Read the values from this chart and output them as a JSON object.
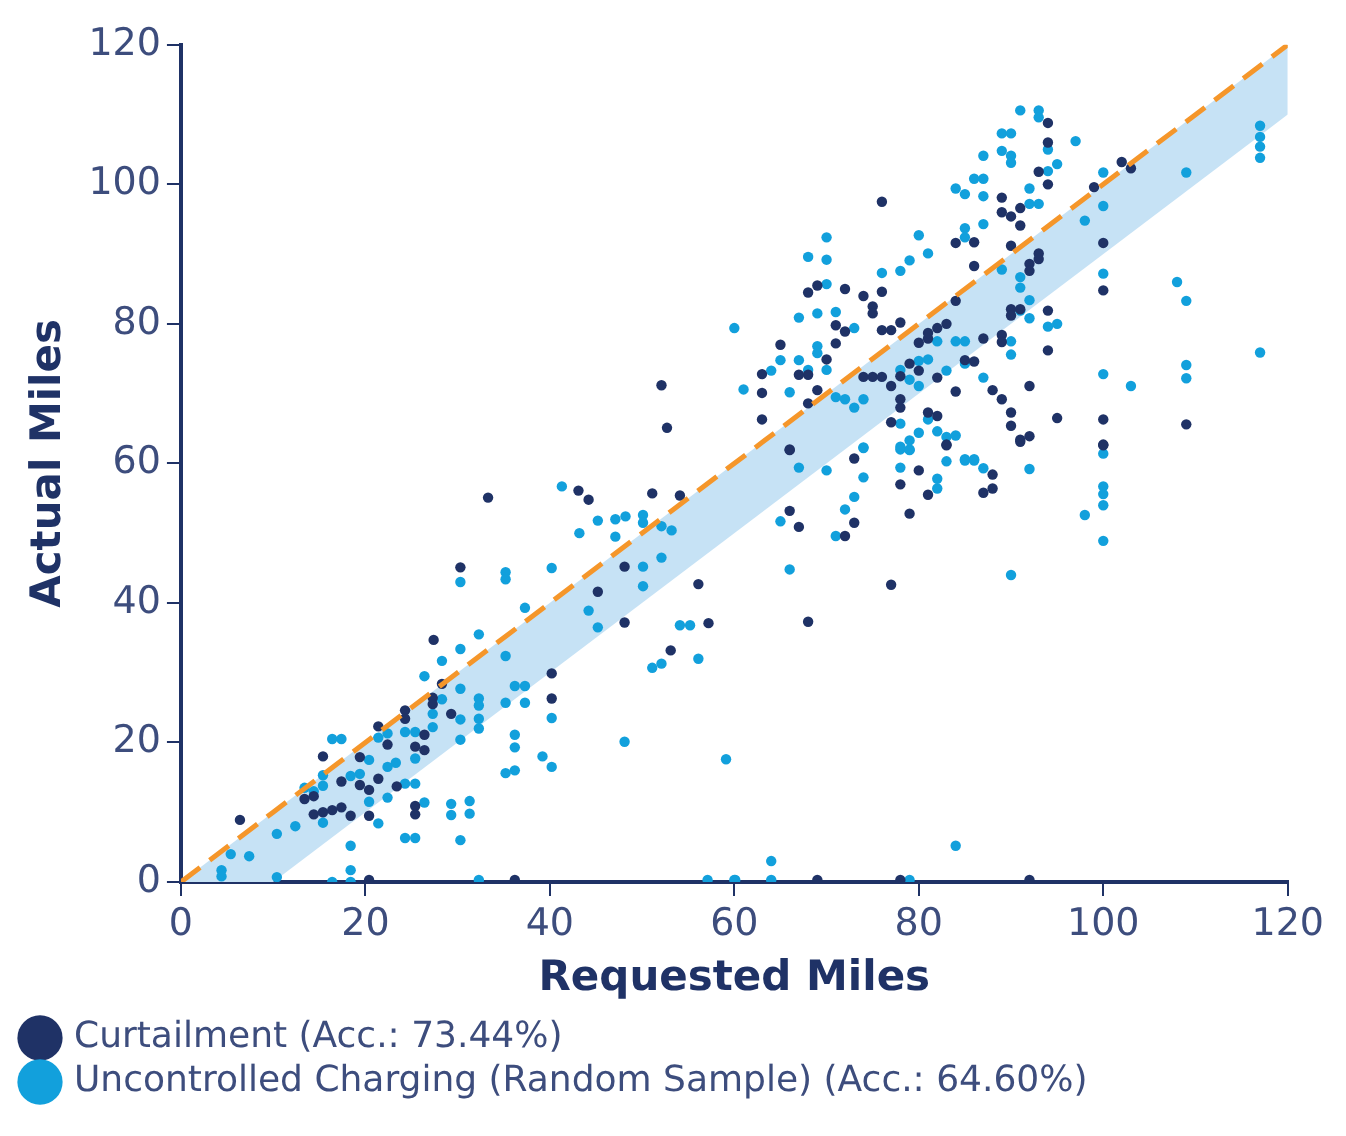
{
  "chart_data": {
    "type": "scatter",
    "xlabel": "Requested Miles",
    "ylabel": "Actual Miles",
    "xlim": [
      0,
      120
    ],
    "ylim": [
      0,
      120
    ],
    "xticks": [
      0,
      20,
      40,
      60,
      80,
      100,
      120
    ],
    "yticks": [
      0,
      20,
      40,
      60,
      80,
      100,
      120
    ],
    "grid": false,
    "legend": "bottom",
    "marker": "circle",
    "series": [
      {
        "name": "Curtailment (Acc.: 73.44%)",
        "color": "#1f3266",
        "x": [
          6.4,
          33.3,
          43.1,
          44.2,
          51.1,
          54.1,
          30.3,
          45.2,
          48.1,
          48.1,
          27.4,
          56.1,
          57.2,
          53.1,
          40.2,
          40.2,
          28.3,
          27.3,
          27.3,
          24.3,
          24.3,
          26.4,
          25.4,
          26.4,
          22.4,
          21.4,
          19.4,
          15.4,
          17.4,
          19.4,
          20.4,
          21.4,
          23.4,
          25.4,
          25.4,
          13.4,
          14.4,
          14.4,
          15.4,
          16.4,
          17.4,
          18.4,
          20.4,
          20.4,
          36.2,
          29.3,
          76,
          94,
          94,
          93,
          94,
          99,
          102,
          103,
          89,
          89,
          90,
          91,
          91,
          84,
          86,
          86,
          90,
          92,
          93,
          93,
          92,
          94,
          94,
          90,
          90,
          91,
          89,
          89,
          87,
          86,
          84,
          83,
          82,
          81,
          81,
          80,
          78,
          76,
          77,
          75,
          75,
          74,
          76,
          72,
          69,
          68,
          71,
          72,
          71,
          70,
          68,
          67,
          65,
          63,
          63,
          63,
          69,
          68,
          74,
          75,
          76,
          77,
          78,
          79,
          80,
          82,
          84,
          85,
          78,
          78,
          77,
          81,
          82,
          83,
          88,
          89,
          90,
          90,
          91,
          92,
          92,
          95,
          100,
          100,
          100,
          100,
          109,
          66,
          66,
          66,
          67,
          68,
          73,
          73,
          72,
          77,
          79,
          78,
          80,
          81,
          83,
          87,
          88,
          88,
          91,
          100,
          69,
          78,
          92,
          52.1,
          52.7
        ],
        "values": [
          8.9,
          55.1,
          56.1,
          54.8,
          55.7,
          55.4,
          45.1,
          41.6,
          45.2,
          37.2,
          34.7,
          42.7,
          37.1,
          33.2,
          29.9,
          26.3,
          28.4,
          26.4,
          25.5,
          24.6,
          23.4,
          21.1,
          19.4,
          18.9,
          19.7,
          22.3,
          17.9,
          18,
          14.4,
          13.9,
          13.2,
          14.8,
          13.7,
          10.9,
          9.7,
          11.9,
          12.3,
          9.7,
          10,
          10.3,
          10.7,
          9.5,
          9.5,
          0.3,
          0.3,
          24.1,
          97.5,
          108.8,
          106,
          101.8,
          100,
          99.6,
          103.2,
          102.3,
          98.1,
          96,
          95.4,
          96.6,
          94.1,
          91.6,
          91.7,
          88.3,
          91.2,
          88.6,
          90.1,
          89.3,
          87.6,
          81.9,
          76.2,
          82.1,
          81.2,
          82.1,
          78.4,
          77.4,
          77.9,
          74.6,
          83.3,
          80,
          79.4,
          77.9,
          78.7,
          77.3,
          80.2,
          79.1,
          79.1,
          82.5,
          81.5,
          84,
          84.6,
          85,
          85.5,
          84.5,
          79.8,
          78.9,
          77.2,
          74.9,
          72.7,
          72.7,
          77,
          72.8,
          70.1,
          66.3,
          70.5,
          68.6,
          72.4,
          72.4,
          72.4,
          71.1,
          72.5,
          74.3,
          73.3,
          72.3,
          70.3,
          74.8,
          69.2,
          68,
          65.9,
          67.3,
          66.8,
          62.7,
          70.5,
          69.2,
          67.3,
          65.4,
          63.4,
          63.9,
          71.1,
          66.5,
          91.6,
          84.8,
          66.3,
          62.7,
          65.6,
          62,
          61.9,
          53.2,
          50.9,
          37.3,
          60.7,
          51.5,
          49.6,
          42.6,
          52.8,
          57,
          59,
          55.5,
          62.6,
          55.8,
          56.4,
          58.4,
          63.1,
          62.6,
          0.3,
          0.3,
          0.3,
          71.2,
          65.1
        ]
      },
      {
        "name": "Uncontrolled Charging (Random Sample) (Acc.: 64.60%)",
        "color": "#12a0dc",
        "x": [
          41.3,
          43.2,
          45.2,
          47.1,
          48.2,
          50.1,
          50.1,
          52.1,
          53.2,
          50.1,
          50.1,
          52.1,
          47.1,
          44.2,
          45.2,
          40.2,
          37.3,
          35.2,
          35.2,
          30.3,
          32.3,
          30.3,
          28.3,
          26.4,
          35.2,
          36.2,
          37.3,
          35.2,
          37.3,
          32.3,
          32.3,
          32.3,
          32.3,
          30.3,
          30.3,
          30.3,
          28.3,
          27.3,
          27.3,
          25.4,
          25.4,
          25.4,
          24.3,
          24.3,
          23.3,
          22.4,
          22.4,
          22.4,
          21.4,
          20.4,
          20.4,
          21.4,
          19.4,
          18.4,
          16.4,
          17.4,
          15.4,
          15.4,
          15.4,
          13.4,
          14.4,
          12.4,
          10.4,
          7.4,
          5.4,
          4.4,
          4.4,
          10.4,
          18.4,
          18.4,
          16.4,
          18.4,
          24.3,
          25.4,
          26.4,
          29.3,
          31.3,
          29.3,
          31.3,
          30.3,
          32.3,
          36.2,
          36.2,
          35.2,
          36.2,
          39.2,
          40.2,
          40.2,
          48.1,
          56.1,
          54.1,
          55.2,
          51.1,
          52.1,
          59.1,
          57.1,
          60.1,
          91,
          93,
          93,
          89,
          90,
          89,
          90,
          90,
          87,
          87,
          86,
          84,
          85,
          87,
          94,
          95,
          94,
          97,
          92,
          92,
          93,
          100,
          100,
          98,
          109,
          117,
          117,
          117,
          117,
          87,
          85,
          85,
          80,
          81,
          79,
          78,
          76,
          70,
          68,
          70,
          70,
          69,
          71,
          67,
          60,
          61,
          64,
          66,
          65,
          67,
          68,
          69,
          69,
          70,
          71,
          73,
          72,
          73,
          74,
          74,
          78,
          79,
          80,
          80,
          81,
          82,
          84,
          85,
          83,
          85,
          87,
          89,
          91,
          91,
          92,
          91,
          92,
          90,
          90,
          94,
          95,
          100,
          100,
          103,
          108,
          109,
          109,
          109,
          117,
          78,
          79,
          80,
          81,
          82,
          83,
          84,
          78,
          79,
          85,
          86,
          67,
          65,
          66,
          70,
          71,
          72,
          73,
          74,
          74,
          78,
          78,
          79,
          82,
          82,
          83,
          85,
          86,
          87,
          92,
          90,
          98,
          100,
          100,
          100,
          100,
          100,
          84,
          64,
          60,
          64,
          79
        ],
        "values": [
          56.7,
          50,
          51.8,
          52,
          52.4,
          52.6,
          51.5,
          51,
          50.4,
          45.2,
          42.4,
          46.5,
          49.5,
          38.9,
          36.5,
          45,
          39.3,
          44.4,
          43.4,
          43,
          35.5,
          33.4,
          31.7,
          29.5,
          32.4,
          28.1,
          28.1,
          25.7,
          25.7,
          26.3,
          25.3,
          23.4,
          22,
          27.7,
          23.3,
          20.4,
          26.2,
          24.1,
          22.2,
          21.5,
          17.7,
          14.1,
          21.5,
          14.1,
          17.1,
          21.3,
          16.5,
          12.1,
          20.7,
          17.5,
          11.5,
          8.4,
          15.5,
          15.2,
          20.5,
          20.5,
          15.3,
          13.8,
          8.5,
          13.5,
          13,
          8,
          6.9,
          3.7,
          4,
          1.7,
          0.8,
          0.7,
          5.2,
          1.7,
          0,
          0,
          6.3,
          6.3,
          11.4,
          11.2,
          11.6,
          9.6,
          9.8,
          6,
          0.3,
          21.1,
          19.3,
          15.6,
          16,
          18,
          23.5,
          16.5,
          20.1,
          32,
          36.8,
          36.8,
          30.7,
          31.3,
          17.6,
          0.3,
          0.3,
          110.6,
          110.6,
          109.6,
          107.3,
          107.3,
          104.8,
          104.1,
          103.1,
          104.1,
          100.8,
          100.8,
          99.4,
          98.6,
          98.3,
          105,
          102.9,
          101.9,
          106.2,
          99.4,
          97.2,
          97.2,
          101.7,
          96.9,
          94.8,
          101.7,
          108.4,
          106.8,
          105.4,
          103.8,
          94.3,
          93.7,
          92.4,
          92.7,
          90.1,
          89.1,
          87.6,
          87.3,
          92.4,
          89.6,
          89.2,
          85.7,
          81.5,
          81.7,
          80.9,
          79.4,
          70.6,
          73.3,
          70.2,
          74.8,
          74.8,
          73.4,
          76.8,
          75.8,
          73.4,
          69.5,
          79.4,
          69.2,
          68,
          69.2,
          62.3,
          73.4,
          72,
          74.7,
          71.1,
          74.9,
          77.5,
          77.5,
          77.5,
          73.3,
          74.3,
          72.3,
          87.8,
          86.7,
          85.2,
          83.4,
          81.9,
          80.8,
          77.5,
          75.6,
          79.6,
          80,
          87.2,
          72.8,
          71.1,
          86,
          83.3,
          74.1,
          72.2,
          75.9,
          65.7,
          63.3,
          64.4,
          66.3,
          64.6,
          63.8,
          64,
          62,
          62,
          60.6,
          60.6,
          59.4,
          51.7,
          44.8,
          59,
          49.6,
          53.4,
          55.2,
          58,
          62.2,
          62.4,
          59.4,
          61.9,
          57.8,
          56.4,
          60.3,
          60.4,
          60.4,
          59.3,
          59.2,
          44,
          52.6,
          61.4,
          56.7,
          55.6,
          54,
          48.9,
          5.2,
          3,
          0.3,
          0.3,
          0.3
        ]
      },
      {
        "type": "line",
        "color": "#f5962a",
        "line_style": "dashed",
        "marker": "none",
        "x": [
          0,
          10,
          120
        ],
        "values": [
          0,
          10,
          120
        ],
        "lower": [
          0,
          0,
          110
        ],
        "upper": [
          0,
          10,
          120
        ]
      }
    ]
  }
}
